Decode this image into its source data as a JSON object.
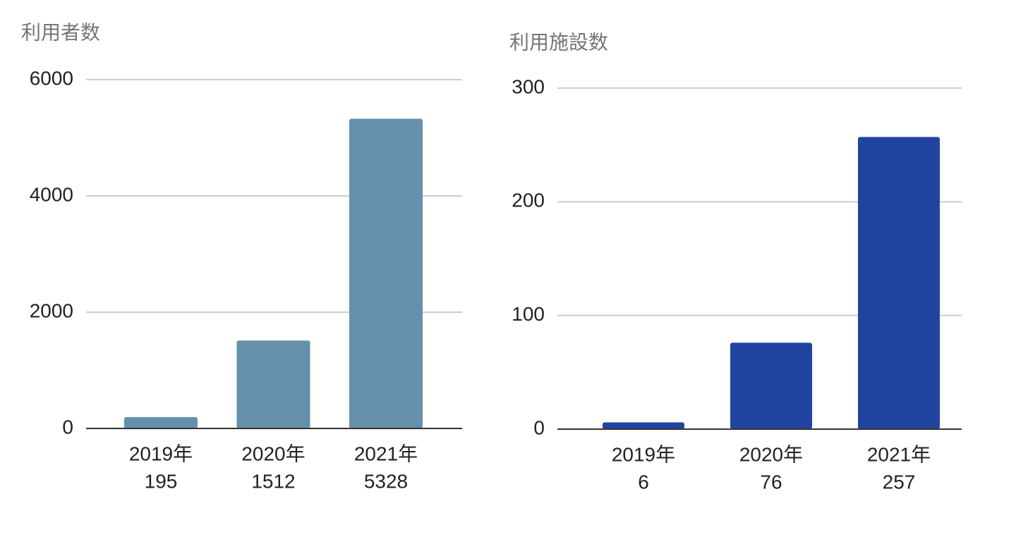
{
  "chart_data": [
    {
      "type": "bar",
      "title": "利用者数",
      "categories": [
        "2019年",
        "2020年",
        "2021年"
      ],
      "values": [
        195,
        1512,
        5328
      ],
      "color": "#6590ab",
      "ylim": [
        0,
        6000
      ],
      "yticks": [
        0,
        2000,
        4000,
        6000
      ],
      "grid": true
    },
    {
      "type": "bar",
      "title": "利用施設数",
      "categories": [
        "2019年",
        "2020年",
        "2021年"
      ],
      "values": [
        6,
        76,
        257
      ],
      "color": "#2144a0",
      "ylim": [
        0,
        300
      ],
      "yticks": [
        0,
        100,
        200,
        300
      ],
      "grid": true
    }
  ]
}
